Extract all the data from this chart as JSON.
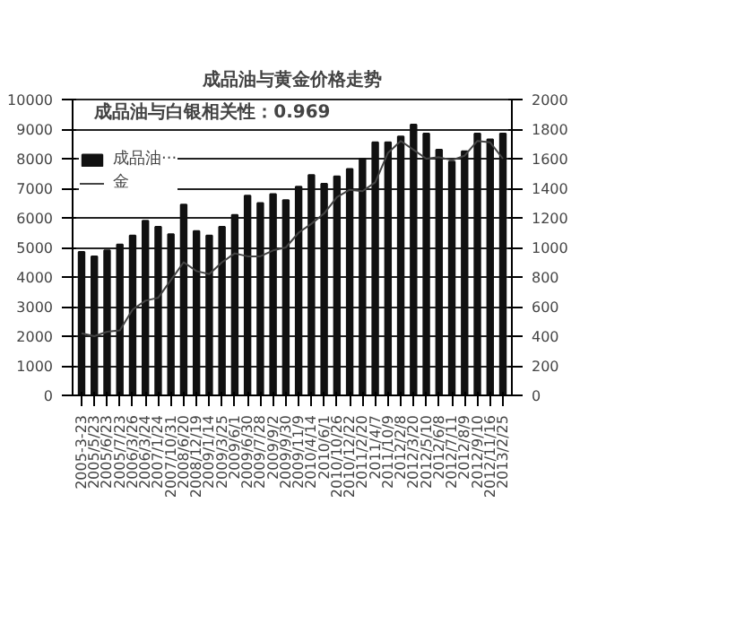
{
  "chart_data": {
    "type": "bar",
    "title": "成品油与黄金价格走势",
    "categories": [
      "2005-3-23",
      "2005/5/23",
      "2005/6/23",
      "2005/7/23",
      "2006/3/26",
      "2006/3/24",
      "2007/1/24",
      "2007/10/31",
      "2008/6/20",
      "2008/12/19",
      "2009/1/14",
      "2009/3/25",
      "2009/6/1",
      "2009/6/30",
      "2009/7/28",
      "2009/9/2",
      "2009/9/30",
      "2009/11/9",
      "2010/4/14",
      "2010/6/1",
      "2010/10/26",
      "2010/12/22",
      "2011/2/20",
      "2011/4/7",
      "2011/10/9",
      "2012/2/8",
      "2012/3/20",
      "2012/5/10",
      "2012/6/8",
      "2012/7/11",
      "2012/8/9",
      "2012/9/10",
      "2012/11/16",
      "2013/2/25"
    ],
    "series": [
      {
        "name": "成品油···",
        "color": "#111111",
        "values": [
          4850,
          4700,
          4900,
          5100,
          5400,
          5900,
          5700,
          5450,
          6450,
          5550,
          5400,
          5700,
          6100,
          6750,
          6500,
          6800,
          6600,
          7050,
          7450,
          7150,
          7400,
          7650,
          8000,
          8550,
          8550,
          8750,
          9150,
          8850,
          8300,
          7900,
          8250,
          8850,
          8650,
          8850
        ]
      },
      {
        "name": "金",
        "type": "line",
        "axis": "y2",
        "color": "#444444",
        "values": [
          420,
          400,
          430,
          440,
          580,
          640,
          660,
          780,
          900,
          840,
          820,
          900,
          960,
          940,
          940,
          980,
          1000,
          1100,
          1160,
          1230,
          1340,
          1390,
          1380,
          1440,
          1640,
          1720,
          1660,
          1600,
          1610,
          1590,
          1620,
          1720,
          1710,
          1600
        ]
      }
    ],
    "ylim": [
      0,
      10000
    ],
    "yticks": [
      0,
      1000,
      2000,
      3000,
      4000,
      5000,
      6000,
      7000,
      8000,
      9000,
      10000
    ],
    "y2lim": [
      0,
      2000
    ],
    "y2ticks": [
      0,
      200,
      400,
      600,
      800,
      1000,
      1200,
      1400,
      1600,
      1800,
      2000
    ],
    "grid": "y",
    "legend": "top left",
    "annotations": [
      "成品油与白银相关性：0.969"
    ]
  }
}
